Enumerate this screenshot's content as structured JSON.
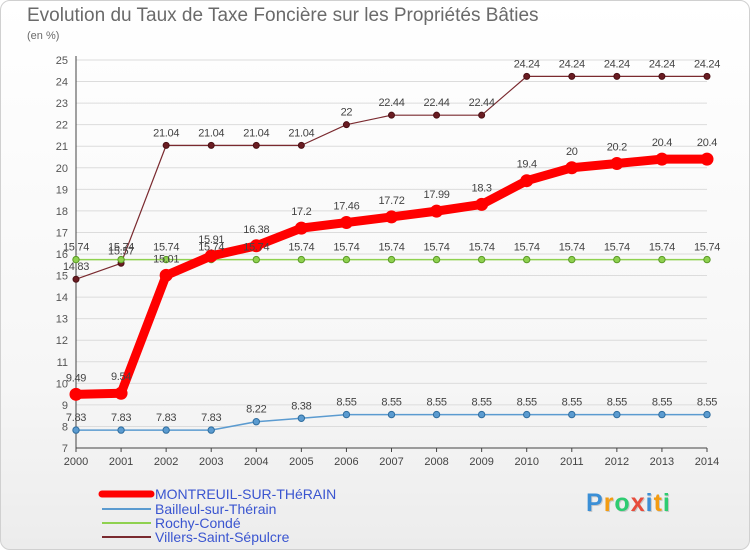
{
  "header": {
    "title": "Evolution du Taux de Taxe Foncière sur les Propriétés Bâties",
    "subtitle": "(en %)"
  },
  "logo": {
    "text": "Proxiti",
    "colors": [
      "#3b8fd6",
      "#f39c12",
      "#2ecc71",
      "#e74c3c",
      "#3b8fd6",
      "#f39c12",
      "#2ecc71"
    ]
  },
  "chart_data": {
    "type": "line",
    "title": "Evolution du Taux de Taxe Foncière sur les Propriétés Bâties",
    "ylabel": "(en %)",
    "xlabel": "",
    "x": [
      "2000",
      "2001",
      "2002",
      "2003",
      "2004",
      "2005",
      "2006",
      "2007",
      "2008",
      "2009",
      "2010",
      "2011",
      "2012",
      "2013",
      "2014"
    ],
    "ylim": [
      7,
      25
    ],
    "yticks": [
      7,
      8,
      9,
      10,
      11,
      12,
      13,
      14,
      15,
      16,
      17,
      18,
      19,
      20,
      21,
      22,
      23,
      24,
      25
    ],
    "grid": true,
    "legend_position": "bottom-left",
    "series": [
      {
        "name": "MONTREUIL-SUR-THéRAIN",
        "color": "#ff0000",
        "values": [
          9.49,
          9.54,
          15.01,
          15.91,
          16.38,
          17.2,
          17.46,
          17.72,
          17.99,
          18.3,
          19.4,
          20,
          20.2,
          20.4,
          20.4
        ],
        "labels": [
          "9.49",
          "9.54",
          "15.01",
          "15.91",
          "16.38",
          "17.2",
          "17.46",
          "17.72",
          "17.99",
          "18.3",
          "19.4",
          "20",
          "20.2",
          "20.4",
          "20.4"
        ]
      },
      {
        "name": "Bailleul-sur-Thérain",
        "color": "#5b9bd0",
        "values": [
          7.83,
          7.83,
          7.83,
          7.83,
          8.22,
          8.38,
          8.55,
          8.55,
          8.55,
          8.55,
          8.55,
          8.55,
          8.55,
          8.55,
          8.55
        ],
        "labels": [
          "7.83",
          "7.83",
          "7.83",
          "7.83",
          "8.22",
          "8.38",
          "8.55",
          "8.55",
          "8.55",
          "8.55",
          "8.55",
          "8.55",
          "8.55",
          "8.55",
          "8.55"
        ]
      },
      {
        "name": "Rochy-Condé",
        "color": "#8fd14f",
        "values": [
          15.74,
          15.74,
          15.74,
          15.74,
          15.74,
          15.74,
          15.74,
          15.74,
          15.74,
          15.74,
          15.74,
          15.74,
          15.74,
          15.74,
          15.74
        ],
        "labels": [
          "15.74",
          "15.74",
          "15.74",
          "15.74",
          "15.74",
          "15.74",
          "15.74",
          "15.74",
          "15.74",
          "15.74",
          "15.74",
          "15.74",
          "15.74",
          "15.74",
          "15.74"
        ]
      },
      {
        "name": "Villers-Saint-Sépulcre",
        "color": "#7a2a2f",
        "values": [
          14.83,
          15.57,
          21.04,
          21.04,
          21.04,
          21.04,
          22,
          22.44,
          22.44,
          22.44,
          24.24,
          24.24,
          24.24,
          24.24,
          24.24
        ],
        "labels": [
          "14.83",
          "15.57",
          "21.04",
          "21.04",
          "21.04",
          "21.04",
          "22",
          "22.44",
          "22.44",
          "22.44",
          "24.24",
          "24.24",
          "24.24",
          "24.24",
          "24.24"
        ]
      }
    ]
  }
}
